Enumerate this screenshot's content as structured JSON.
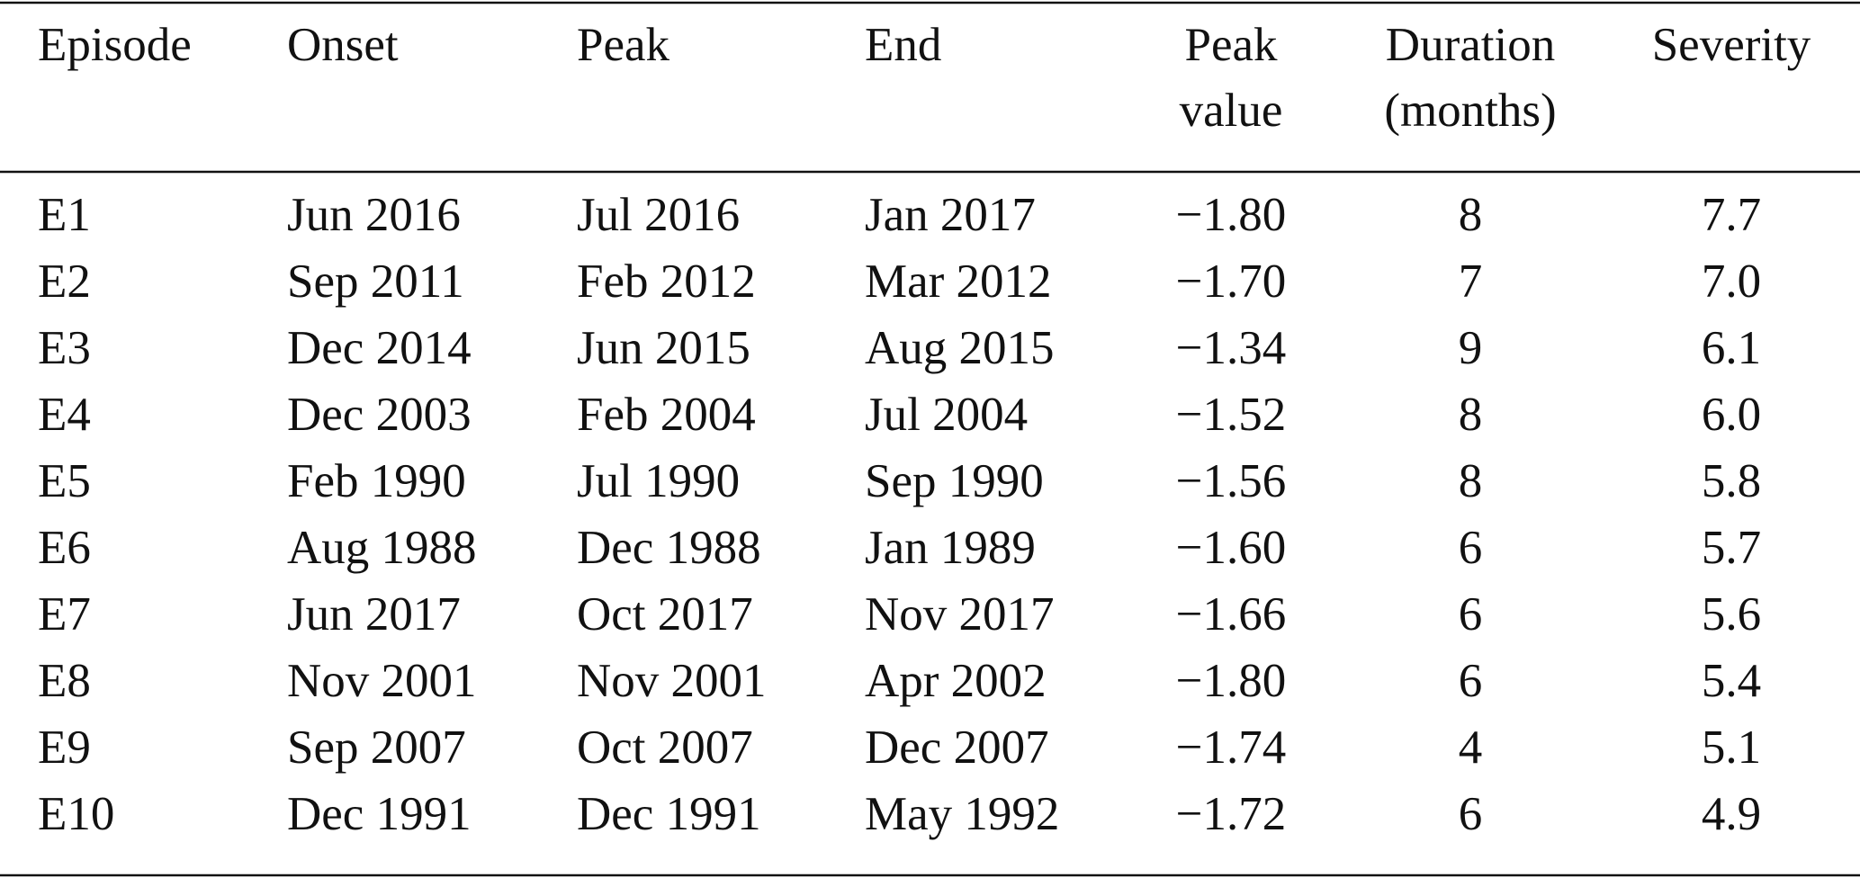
{
  "table": {
    "header": [
      [
        "Episode"
      ],
      [
        "Onset"
      ],
      [
        "Peak"
      ],
      [
        "End"
      ],
      [
        "Peak",
        "value"
      ],
      [
        "Duration",
        "(months)"
      ],
      [
        "Severity"
      ]
    ],
    "rows": [
      [
        "E1",
        "Jun 2016",
        "Jul 2016",
        "Jan 2017",
        "−1.80",
        "8",
        "7.7"
      ],
      [
        "E2",
        "Sep 2011",
        "Feb 2012",
        "Mar 2012",
        "−1.70",
        "7",
        "7.0"
      ],
      [
        "E3",
        "Dec 2014",
        "Jun 2015",
        "Aug 2015",
        "−1.34",
        "9",
        "6.1"
      ],
      [
        "E4",
        "Dec 2003",
        "Feb 2004",
        "Jul 2004",
        "−1.52",
        "8",
        "6.0"
      ],
      [
        "E5",
        "Feb 1990",
        "Jul 1990",
        "Sep 1990",
        "−1.56",
        "8",
        "5.8"
      ],
      [
        "E6",
        "Aug 1988",
        "Dec 1988",
        "Jan 1989",
        "−1.60",
        "6",
        "5.7"
      ],
      [
        "E7",
        "Jun 2017",
        "Oct 2017",
        "Nov 2017",
        "−1.66",
        "6",
        "5.6"
      ],
      [
        "E8",
        "Nov 2001",
        "Nov 2001",
        "Apr 2002",
        "−1.80",
        "6",
        "5.4"
      ],
      [
        "E9",
        "Sep 2007",
        "Oct 2007",
        "Dec 2007",
        "−1.74",
        "4",
        "5.1"
      ],
      [
        "E10",
        "Dec 1991",
        "Dec 1991",
        "May 1992",
        "−1.72",
        "6",
        "4.9"
      ]
    ]
  }
}
